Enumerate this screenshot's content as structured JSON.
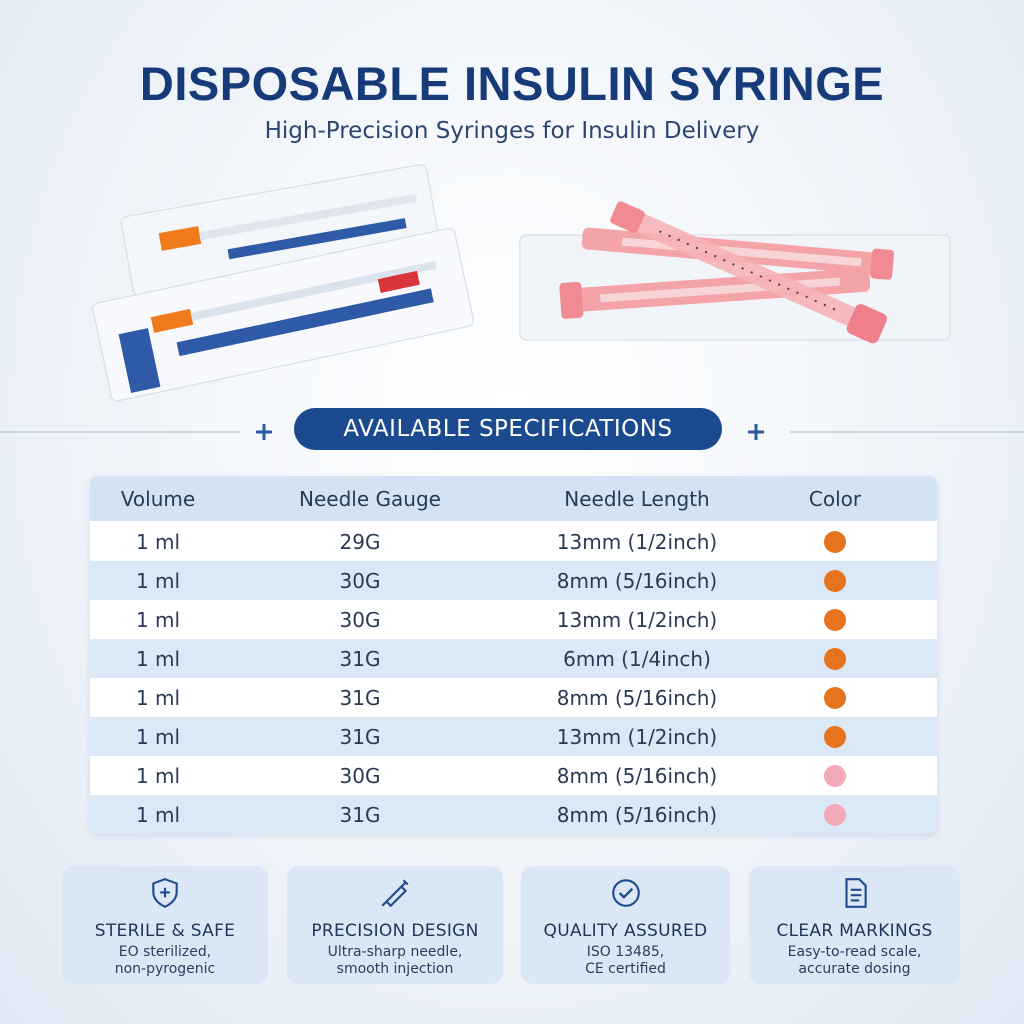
{
  "header": {
    "title": "DISPOSABLE INSULIN SYRINGE",
    "subtitle": "High-Precision Syringes for Insulin Delivery"
  },
  "section": {
    "title": "AVAILABLE SPECIFICATIONS"
  },
  "table": {
    "columns": [
      "Volume",
      "Needle Gauge",
      "Needle Length",
      "Color"
    ],
    "rows": [
      [
        "1 ml",
        "29G",
        "13mm (1/2inch)",
        "#e8731f"
      ],
      [
        "1 ml",
        "30G",
        "8mm (5/16inch)",
        "#e8731f"
      ],
      [
        "1 ml",
        "30G",
        "13mm (1/2inch)",
        "#e8731f"
      ],
      [
        "1 ml",
        "31G",
        "6mm (1/4inch)",
        "#e8731f"
      ],
      [
        "1 ml",
        "31G",
        "8mm (5/16inch)",
        "#e8731f"
      ],
      [
        "1 ml",
        "31G",
        "13mm (1/2inch)",
        "#e8731f"
      ],
      [
        "1 ml",
        "30G",
        "8mm (5/16inch)",
        "#f4a9b8"
      ],
      [
        "1 ml",
        "31G",
        "8mm (5/16inch)",
        "#f4a9b8"
      ]
    ]
  },
  "features": [
    {
      "title": "STERILE & SAFE",
      "lines": [
        "EO sterilized,",
        "non-pyrogenic"
      ]
    },
    {
      "title": "PRECISION DESIGN",
      "lines": [
        "Ultra-sharp needle,",
        "smooth injection"
      ]
    },
    {
      "title": "QUALITY ASSURED",
      "lines": [
        "ISO 13485,",
        "CE certified"
      ]
    },
    {
      "title": "CLEAR MARKINGS",
      "lines": [
        "Easy-to-read scale,",
        "accurate dosing"
      ]
    }
  ]
}
